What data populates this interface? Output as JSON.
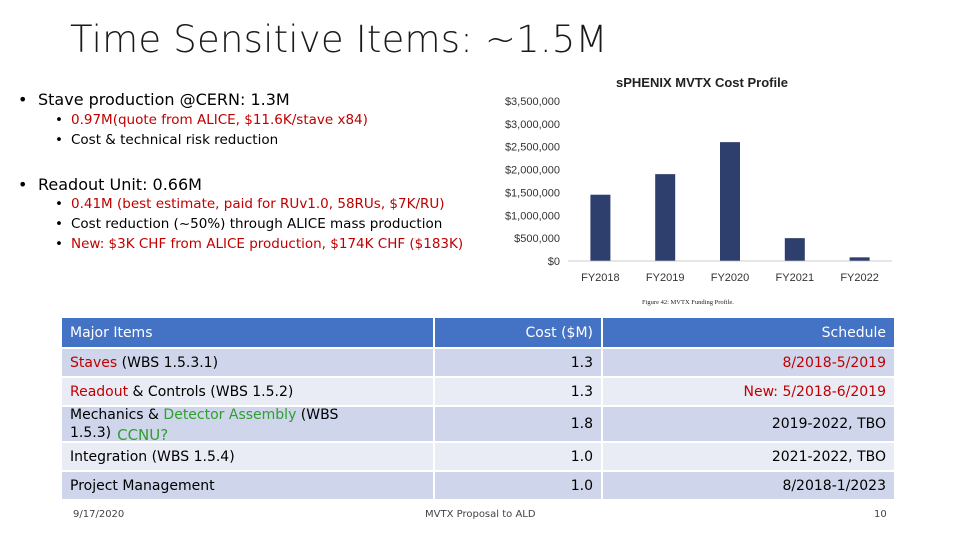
{
  "slide": {
    "title": "Time Sensitive Items: ~1.5M",
    "bullets": [
      {
        "text": "Stave production @CERN: 1.3M",
        "sub": [
          "0.97M(quote from ALICE, $11.6K/stave x84)",
          "Cost & technical risk reduction"
        ]
      },
      {
        "text": "Readout Unit: 0.66M",
        "sub": [
          "0.41M (best estimate, paid for RUv1.0, 58RUs, $7K/RU)",
          "Cost reduction (~50%) through ALICE mass production",
          "New: $3K CHF from ALICE production, $174K CHF ($183K)"
        ]
      }
    ],
    "colors": {
      "red": "#c00000",
      "green": "#2ea02e",
      "header_blue": "#4472c4",
      "bar": "#2e3f6e"
    }
  },
  "chart_data": {
    "type": "bar",
    "title": "sPHENIX MVTX Cost Profile",
    "categories": [
      "FY2018",
      "FY2019",
      "FY2020",
      "FY2021",
      "FY2022"
    ],
    "values": [
      1450000,
      1900000,
      2600000,
      500000,
      80000
    ],
    "yticks": [
      "$0",
      "$500,000",
      "$1,000,000",
      "$1,500,000",
      "$2,000,000",
      "$2,500,000",
      "$3,000,000",
      "$3,500,000"
    ],
    "ylim": [
      0,
      3500000
    ],
    "caption": "Figure 42: MVTX Funding Profile."
  },
  "table": {
    "headers": [
      "Major Items",
      "Cost ($M)",
      "Schedule"
    ],
    "rows": [
      {
        "item_a": "Staves",
        "item_b": " (WBS 1.5.3.1)",
        "cost": "1.3",
        "schedule": "8/2018-5/2019"
      },
      {
        "item_a": "Readout",
        "item_b": " & Controls (WBS 1.5.2)",
        "cost": "1.3",
        "schedule": "New: 5/2018-6/2019"
      },
      {
        "item_a": "Mechanics & ",
        "item_g": "Detector Assembly",
        "item_b": " (WBS 1.5.3)",
        "note": "CCNU?",
        "cost": "1.8",
        "schedule": "2019-2022, TBO"
      },
      {
        "item_a": "Integration (WBS 1.5.4)",
        "cost": "1.0",
        "schedule": "2021-2022, TBO"
      },
      {
        "item_a": "Project Management",
        "cost": "1.0",
        "schedule": "8/2018-1/2023"
      }
    ]
  },
  "footer": {
    "date": "9/17/2020",
    "center": "MVTX Proposal to ALD",
    "page": "10"
  }
}
